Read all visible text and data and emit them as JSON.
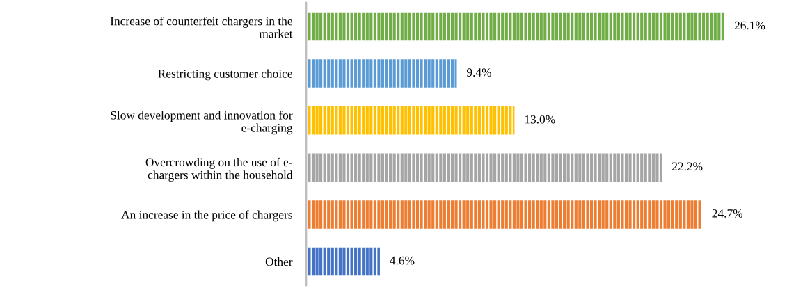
{
  "chart_data": {
    "type": "bar",
    "orientation": "horizontal",
    "categories": [
      "Increase of counterfeit chargers in the\nmarket",
      "Restricting customer choice",
      "Slow development and innovation for\ne-charging",
      "Overcrowding on the use of e-\nchargers within the household",
      "An increase in the price of chargers",
      "Other"
    ],
    "values": [
      26.1,
      9.4,
      13.0,
      22.2,
      24.7,
      4.6
    ],
    "colors": [
      "#70ad47",
      "#5b9bd5",
      "#ffc000",
      "#a5a5a5",
      "#ed7d31",
      "#4472c4"
    ],
    "value_labels": [
      "26.1%",
      "9.4%",
      "13.0%",
      "22.2%",
      "24.7%",
      "4.6%"
    ],
    "grid": false,
    "legend": false
  }
}
